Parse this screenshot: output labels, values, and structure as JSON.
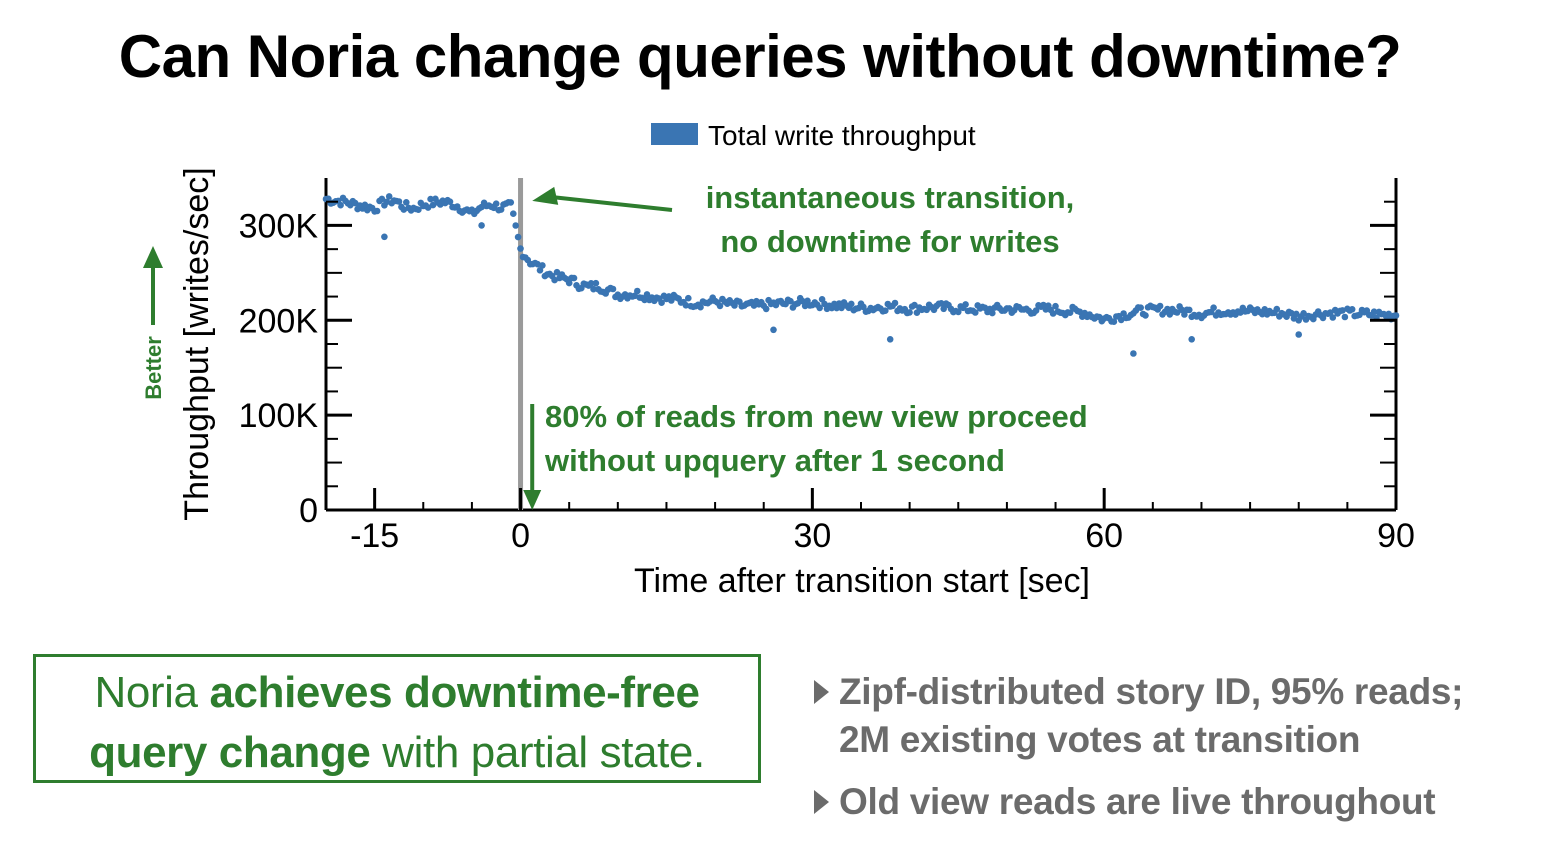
{
  "slide": {
    "title": "Can Noria change queries without downtime?"
  },
  "chart_data": {
    "type": "scatter",
    "title": "",
    "xlabel": "Time after transition start [sec]",
    "ylabel": "Throughput [writes/sec]",
    "xlim": [
      -20,
      90
    ],
    "ylim": [
      0,
      350000
    ],
    "x_ticks": [
      -15,
      0,
      30,
      60,
      90
    ],
    "x_tick_labels": [
      "-15",
      "0",
      "30",
      "60",
      "90"
    ],
    "y_ticks": [
      0,
      100000,
      200000,
      300000
    ],
    "y_tick_labels": [
      "0",
      "100K",
      "200K",
      "300K"
    ],
    "legend": {
      "position": "top-center",
      "entries": [
        "Total write throughput"
      ]
    },
    "grid": false,
    "series": [
      {
        "name": "Total write throughput",
        "color": "#3a75b3",
        "x": [
          -20,
          -19,
          -18,
          -17,
          -16,
          -15,
          -14,
          -13,
          -12,
          -11,
          -10,
          -9,
          -8,
          -7,
          -6,
          -5,
          -4,
          -3,
          -2,
          -1,
          0,
          0.5,
          1,
          2,
          3,
          4,
          5,
          6,
          7,
          8,
          9,
          10,
          12,
          14,
          16,
          18,
          20,
          22,
          24,
          26,
          28,
          30,
          32,
          34,
          36,
          38,
          40,
          42,
          44,
          46,
          48,
          50,
          52,
          54,
          56,
          58,
          60,
          62,
          64,
          66,
          68,
          70,
          72,
          74,
          76,
          78,
          80,
          82,
          84,
          86,
          88,
          90
        ],
        "y": [
          328000,
          326000,
          325000,
          322000,
          320000,
          318000,
          325000,
          327000,
          320000,
          318000,
          322000,
          324000,
          325000,
          323000,
          318000,
          312000,
          320000,
          322000,
          319000,
          320000,
          275000,
          268000,
          262000,
          255000,
          248000,
          245000,
          243000,
          238000,
          235000,
          236000,
          232000,
          227000,
          228000,
          224000,
          222000,
          218000,
          220000,
          216000,
          215000,
          217000,
          218000,
          219000,
          216000,
          214000,
          213000,
          215000,
          212000,
          214000,
          213000,
          212000,
          211000,
          212000,
          211000,
          212000,
          210000,
          208000,
          201000,
          206000,
          210000,
          211000,
          210000,
          207000,
          210000,
          210000,
          209000,
          208000,
          204000,
          207000,
          208000,
          207000,
          206000,
          205000
        ],
        "outliers": [
          {
            "x": -14,
            "y": 288000
          },
          {
            "x": -4,
            "y": 300000
          },
          {
            "x": 26,
            "y": 190000
          },
          {
            "x": 38,
            "y": 180000
          },
          {
            "x": 63,
            "y": 165000
          },
          {
            "x": 69,
            "y": 180000
          },
          {
            "x": 80,
            "y": 185000
          }
        ]
      }
    ],
    "transition_line": {
      "x": 0,
      "color": "#9a9a9a"
    },
    "annotations": [
      {
        "lines": [
          "instantaneous transition,",
          "no downtime for writes"
        ],
        "color": "#2e7d2e",
        "points_to": {
          "x": 1.2,
          "y": 290000
        }
      },
      {
        "lines": [
          "80% of reads from new view proceed",
          "without upquery after 1 second"
        ],
        "color": "#2e7d2e",
        "points_to": {
          "x": 1.2,
          "y": 0
        }
      }
    ],
    "better_indicator": {
      "label": "Better",
      "color": "#2e7d2e",
      "direction": "up"
    }
  },
  "conclusion": {
    "part1": "Noria ",
    "bold1": "achieves downtime-free",
    "bold2": "query change",
    "part2": " with partial state."
  },
  "bullets": [
    {
      "line1": "Zipf-distributed story ID, 95% reads;",
      "line2": "2M existing votes at transition"
    },
    {
      "line1": "Old view reads are live throughout",
      "line2": ""
    }
  ]
}
